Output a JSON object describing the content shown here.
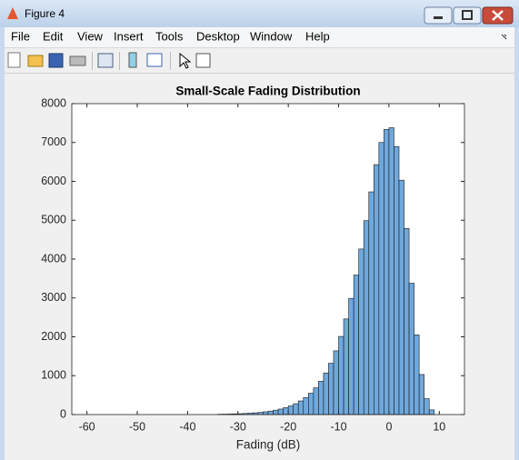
{
  "window": {
    "title": "Figure 4",
    "menu": [
      "File",
      "Edit",
      "View",
      "Insert",
      "Tools",
      "Desktop",
      "Window",
      "Help"
    ]
  },
  "chart_data": {
    "type": "histogram",
    "title": "Small-Scale Fading Distribution",
    "x_label": "Fading (dB)",
    "color": "#6fa8dc",
    "bins": [
      -34,
      -33,
      -32,
      -31,
      -30,
      -29,
      -28,
      -27,
      -26,
      -25,
      -24,
      -23,
      -22,
      -21,
      -20,
      -19,
      -18,
      -17,
      -16,
      -15,
      -14,
      -13,
      -12,
      -11,
      -10,
      -9,
      -8,
      -7,
      -6,
      -5,
      -4,
      -3,
      -2,
      -1,
      0,
      1,
      2,
      3,
      4,
      5,
      6,
      7,
      8,
      9
    ],
    "values": [
      9,
      11,
      14,
      18,
      22,
      28,
      36,
      45,
      56,
      71,
      89,
      112,
      141,
      177,
      222,
      279,
      350,
      439,
      549,
      687,
      856,
      1070,
      1320,
      1640,
      2010,
      2460,
      2990,
      3590,
      4260,
      4990,
      5730,
      6430,
      7000,
      7336,
      7380,
      6895,
      6030,
      4790,
      3380,
      2050,
      1030,
      408,
      120
    ],
    "xlim": [
      -63,
      15
    ],
    "xticks": [
      -60,
      -50,
      -40,
      -30,
      -20,
      -10,
      0,
      10
    ],
    "ylim": [
      0,
      8000
    ],
    "yticks": [
      0,
      1000,
      2000,
      3000,
      4000,
      5000,
      6000,
      7000,
      8000
    ]
  }
}
